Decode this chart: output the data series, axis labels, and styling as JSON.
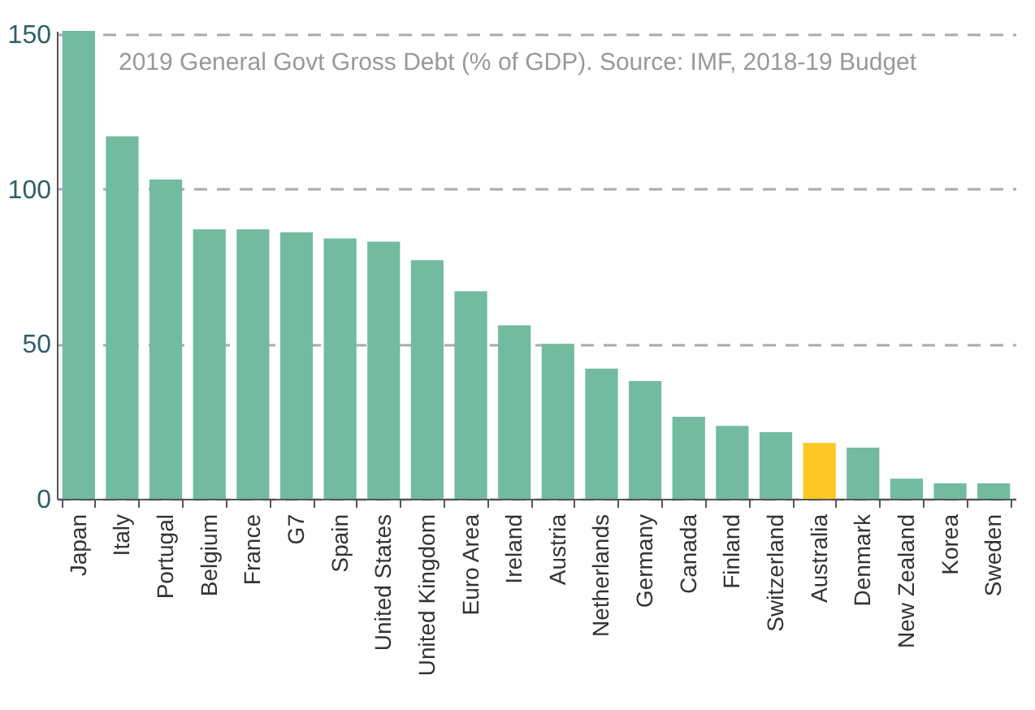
{
  "chart_data": {
    "type": "bar",
    "annotations": [
      "2019 General Govt Gross Debt (% of GDP). Source: IMF, 2018-19 Budget"
    ],
    "categories": [
      "Japan",
      "Italy",
      "Portugal",
      "Belgium",
      "France",
      "G7",
      "Spain",
      "United States",
      "United Kingdom",
      "Euro Area",
      "Ireland",
      "Austria",
      "Netherlands",
      "Germany",
      "Canada",
      "Finland",
      "Switzerland",
      "Australia",
      "Denmark",
      "New Zealand",
      "Korea",
      "Sweden"
    ],
    "values": [
      151,
      117,
      103,
      87,
      87,
      86,
      84,
      83,
      77,
      67,
      56,
      50,
      42,
      38,
      26.5,
      23.5,
      21.5,
      18,
      16.5,
      6.5,
      5,
      5
    ],
    "colors": [
      "#72bba0",
      "#72bba0",
      "#72bba0",
      "#72bba0",
      "#72bba0",
      "#72bba0",
      "#72bba0",
      "#72bba0",
      "#72bba0",
      "#72bba0",
      "#72bba0",
      "#72bba0",
      "#72bba0",
      "#72bba0",
      "#72bba0",
      "#72bba0",
      "#72bba0",
      "#fcc825",
      "#72bba0",
      "#72bba0",
      "#72bba0",
      "#72bba0"
    ],
    "ylim": [
      0,
      151
    ],
    "yticks": [
      0,
      50,
      100,
      150
    ],
    "grid": "y"
  }
}
